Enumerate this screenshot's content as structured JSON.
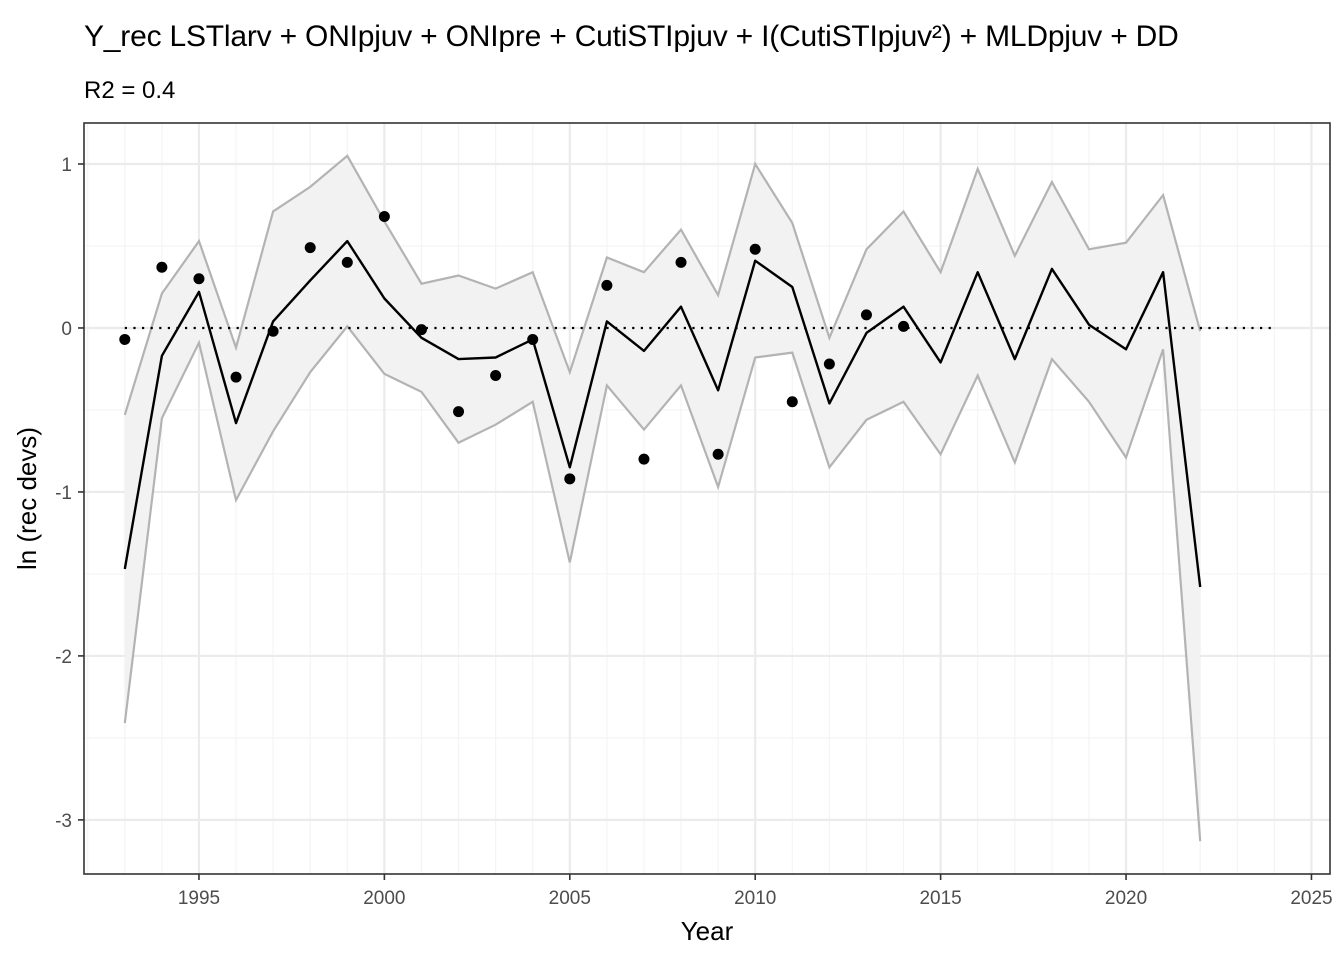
{
  "chart_data": {
    "type": "line",
    "title": "Y_rec LSTlarv + ONIpjuv + ONIpre + CutiSTIpjuv + I(CutiSTIpjuv²) + MLDpjuv + DD",
    "subtitle": "R2 = 0.4",
    "xlabel": "Year",
    "ylabel": "ln (rec devs)",
    "xlim": [
      1991.9,
      2025.5
    ],
    "ylim": [
      -3.33,
      1.25
    ],
    "x_ticks": [
      1995,
      2000,
      2005,
      2010,
      2015,
      2020,
      2025
    ],
    "y_ticks": [
      -3,
      -2,
      -1,
      0,
      1
    ],
    "grid": true,
    "reference_line": {
      "y": 0,
      "x_range": [
        1993,
        2024
      ],
      "style": "dotted"
    },
    "series": [
      {
        "role": "fit",
        "x": [
          1993,
          1994,
          1995,
          1996,
          1997,
          1998,
          1999,
          2000,
          2001,
          2002,
          2003,
          2004,
          2005,
          2006,
          2007,
          2008,
          2009,
          2010,
          2011,
          2012,
          2013,
          2014,
          2015,
          2016,
          2017,
          2018,
          2019,
          2020,
          2021,
          2022
        ],
        "values": [
          -1.47,
          -0.17,
          0.22,
          -0.58,
          0.04,
          0.29,
          0.53,
          0.18,
          -0.06,
          -0.19,
          -0.18,
          -0.07,
          -0.85,
          0.04,
          -0.14,
          0.13,
          -0.38,
          0.41,
          0.25,
          -0.46,
          -0.03,
          0.13,
          -0.21,
          0.34,
          -0.19,
          0.36,
          0.02,
          -0.13,
          0.34,
          -1.58
        ]
      },
      {
        "role": "upper",
        "x": [
          1993,
          1994,
          1995,
          1996,
          1997,
          1998,
          1999,
          2000,
          2001,
          2002,
          2003,
          2004,
          2005,
          2006,
          2007,
          2008,
          2009,
          2010,
          2011,
          2012,
          2013,
          2014,
          2015,
          2016,
          2017,
          2018,
          2019,
          2020,
          2021,
          2022
        ],
        "values": [
          -0.53,
          0.21,
          0.53,
          -0.12,
          0.71,
          0.86,
          1.05,
          0.65,
          0.27,
          0.32,
          0.24,
          0.34,
          -0.27,
          0.43,
          0.34,
          0.6,
          0.2,
          1.0,
          0.64,
          -0.06,
          0.48,
          0.71,
          0.34,
          0.97,
          0.44,
          0.89,
          0.48,
          0.52,
          0.81,
          -0.02
        ]
      },
      {
        "role": "lower",
        "x": [
          1993,
          1994,
          1995,
          1996,
          1997,
          1998,
          1999,
          2000,
          2001,
          2002,
          2003,
          2004,
          2005,
          2006,
          2007,
          2008,
          2009,
          2010,
          2011,
          2012,
          2013,
          2014,
          2015,
          2016,
          2017,
          2018,
          2019,
          2020,
          2021,
          2022
        ],
        "values": [
          -2.41,
          -0.55,
          -0.09,
          -1.05,
          -0.63,
          -0.27,
          0.01,
          -0.28,
          -0.39,
          -0.7,
          -0.59,
          -0.45,
          -1.43,
          -0.35,
          -0.62,
          -0.35,
          -0.97,
          -0.18,
          -0.15,
          -0.85,
          -0.56,
          -0.45,
          -0.77,
          -0.29,
          -0.82,
          -0.19,
          -0.45,
          -0.79,
          -0.13,
          -3.13
        ]
      }
    ],
    "points": {
      "x": [
        1993,
        1994,
        1995,
        1996,
        1997,
        1998,
        1999,
        2000,
        2001,
        2002,
        2003,
        2004,
        2005,
        2006,
        2007,
        2008,
        2009,
        2010,
        2011,
        2012,
        2013,
        2014
      ],
      "values": [
        -0.07,
        0.37,
        0.3,
        -0.3,
        -0.02,
        0.49,
        0.4,
        0.68,
        -0.01,
        -0.51,
        -0.29,
        -0.07,
        -0.92,
        0.26,
        -0.8,
        0.4,
        -0.77,
        0.48,
        -0.45,
        -0.22,
        0.08,
        0.01
      ]
    },
    "colors": {
      "fit": "#000000",
      "ribbon_fill": "#f2f2f2",
      "ribbon_line": "#b3b3b3",
      "points": "#000000",
      "grid_major": "#ebebeb",
      "grid_minor": "#f4f4f4",
      "panel_border": "#333333"
    }
  }
}
